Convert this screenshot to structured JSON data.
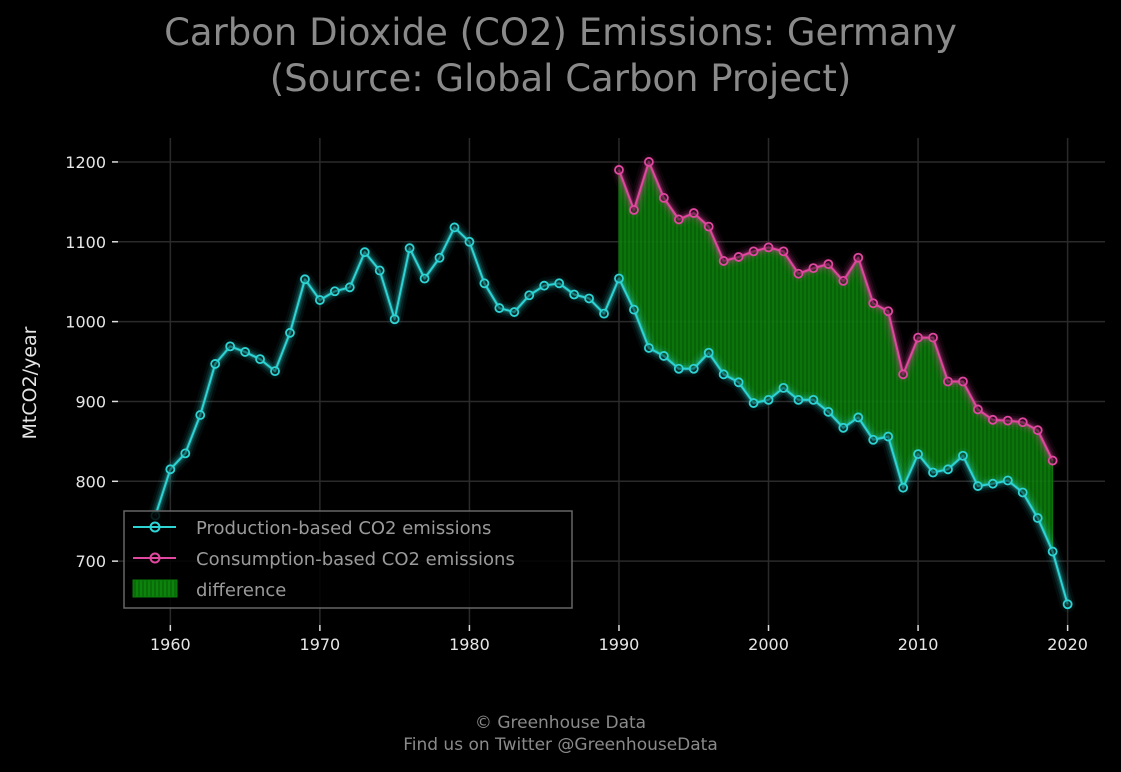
{
  "chart_data": {
    "type": "line",
    "title_line1": "Carbon Dioxide (CO2) Emissions: Germany",
    "title_line2": "(Source: Global Carbon Project)",
    "ylabel": "MtCO2/year",
    "xlabel": "",
    "xlim": [
      1956.5,
      2022.5
    ],
    "ylim": [
      620,
      1230
    ],
    "xticks": [
      1960,
      1970,
      1980,
      1990,
      2000,
      2010,
      2020
    ],
    "yticks": [
      700,
      800,
      900,
      1000,
      1100,
      1200
    ],
    "grid": true,
    "legend_position": "lower-left",
    "series": [
      {
        "name": "Production-based CO2 emissions",
        "color": "#2ed3d3",
        "x": [
          1959,
          1960,
          1961,
          1962,
          1963,
          1964,
          1965,
          1966,
          1967,
          1968,
          1969,
          1970,
          1971,
          1972,
          1973,
          1974,
          1975,
          1976,
          1977,
          1978,
          1979,
          1980,
          1981,
          1982,
          1983,
          1984,
          1985,
          1986,
          1987,
          1988,
          1989,
          1990,
          1991,
          1992,
          1993,
          1994,
          1995,
          1996,
          1997,
          1998,
          1999,
          2000,
          2001,
          2002,
          2003,
          2004,
          2005,
          2006,
          2007,
          2008,
          2009,
          2010,
          2011,
          2012,
          2013,
          2014,
          2015,
          2016,
          2017,
          2018,
          2019,
          2020
        ],
        "values": [
          757,
          815,
          835,
          883,
          947,
          969,
          962,
          953,
          938,
          986,
          1053,
          1027,
          1038,
          1043,
          1087,
          1064,
          1003,
          1092,
          1054,
          1080,
          1118,
          1100,
          1048,
          1017,
          1012,
          1033,
          1045,
          1048,
          1034,
          1029,
          1010,
          1054,
          1015,
          967,
          957,
          941,
          941,
          961,
          934,
          924,
          898,
          902,
          917,
          902,
          902,
          887,
          867,
          880,
          852,
          856,
          792,
          834,
          811,
          815,
          832,
          794,
          797,
          801,
          786,
          754,
          712,
          646
        ]
      },
      {
        "name": "Consumption-based CO2 emissions",
        "color": "#e0479e",
        "x": [
          1990,
          1991,
          1992,
          1993,
          1994,
          1995,
          1996,
          1997,
          1998,
          1999,
          2000,
          2001,
          2002,
          2003,
          2004,
          2005,
          2006,
          2007,
          2008,
          2009,
          2010,
          2011,
          2012,
          2013,
          2014,
          2015,
          2016,
          2017,
          2018,
          2019
        ],
        "values": [
          1190,
          1140,
          1200,
          1155,
          1128,
          1136,
          1119,
          1076,
          1081,
          1088,
          1093,
          1088,
          1060,
          1067,
          1072,
          1051,
          1080,
          1023,
          1013,
          934,
          980,
          980,
          925,
          925,
          890,
          877,
          876,
          874,
          864,
          826
        ]
      }
    ],
    "fill": {
      "name": "difference",
      "color": "#0a7d0a"
    },
    "credit_line1": "© Greenhouse Data",
    "credit_line2": "Find us on Twitter @GreenhouseData"
  }
}
